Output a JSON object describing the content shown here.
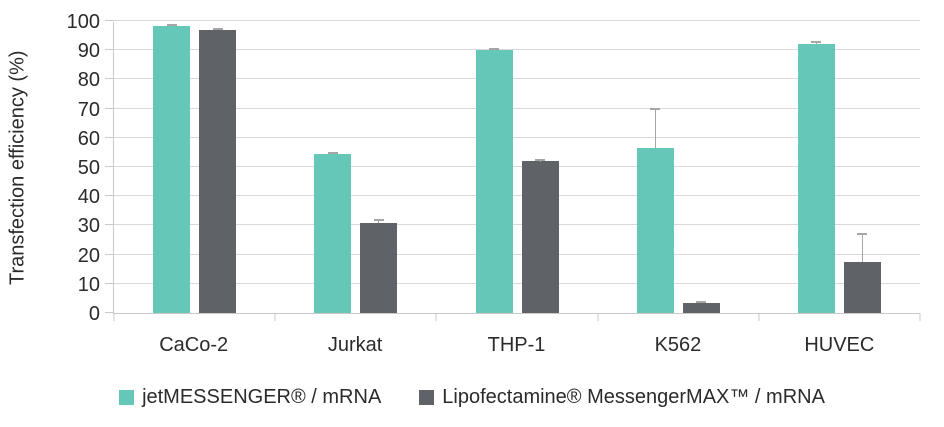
{
  "chart_data": {
    "type": "bar",
    "title": "",
    "xlabel": "",
    "ylabel": "Transfection efficiency (%)",
    "ylim": [
      0,
      100
    ],
    "yticks": [
      0,
      10,
      20,
      30,
      40,
      50,
      60,
      70,
      80,
      90,
      100
    ],
    "grid": "horizontal",
    "legend_position": "bottom",
    "categories": [
      "CaCo-2",
      "Jurkat",
      "THP-1",
      "K562",
      "HUVEC"
    ],
    "series": [
      {
        "name": "jetMESSENGER® / mRNA",
        "color": "#64c7b8",
        "values": [
          98.4,
          54.4,
          90.1,
          56.5,
          92.0
        ],
        "errors": [
          1.0,
          0.6,
          0.9,
          14.3,
          1.7
        ]
      },
      {
        "name": "Lipofectamine® MessengerMAX™ / mRNA",
        "color": "#5f6266",
        "values": [
          96.8,
          30.8,
          51.9,
          3.5,
          17.4
        ],
        "errors": [
          1.2,
          2.2,
          1.7,
          0.4,
          10.7
        ]
      }
    ],
    "error_bar_color": "#a6a6a6",
    "gridline_color": "#d9d9d9",
    "axis_color": "#c9c9c9"
  }
}
